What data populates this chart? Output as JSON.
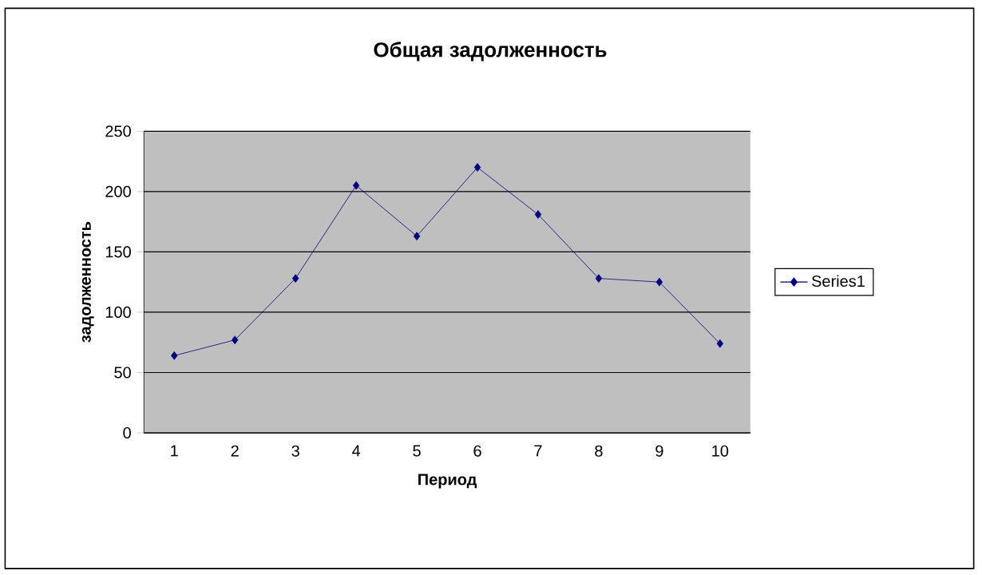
{
  "chart_data": {
    "type": "line",
    "title": "Общая задолженность",
    "xlabel": "Период",
    "ylabel": "задолженность",
    "categories": [
      "1",
      "2",
      "3",
      "4",
      "5",
      "6",
      "7",
      "8",
      "9",
      "10"
    ],
    "series": [
      {
        "name": "Series1",
        "color": "#000080",
        "values": [
          64,
          77,
          128,
          205,
          163,
          220,
          181,
          128,
          125,
          74
        ]
      }
    ],
    "ylim": [
      0,
      250
    ],
    "yticks": [
      0,
      50,
      100,
      150,
      200,
      250
    ],
    "grid": "y",
    "legend": "right",
    "marker": "diamond",
    "line_style": "solid"
  }
}
